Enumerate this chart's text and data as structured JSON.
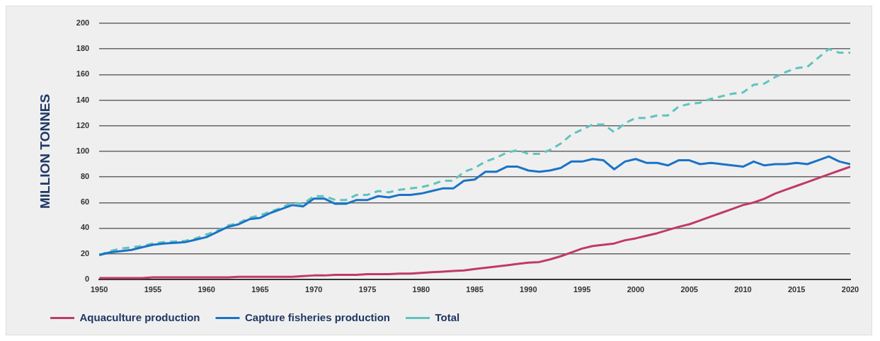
{
  "chart_data": {
    "type": "line",
    "ylabel": "MILLION TONNES",
    "x": [
      1950,
      1951,
      1952,
      1953,
      1954,
      1955,
      1956,
      1957,
      1958,
      1959,
      1960,
      1961,
      1962,
      1963,
      1964,
      1965,
      1966,
      1967,
      1968,
      1969,
      1970,
      1971,
      1972,
      1973,
      1974,
      1975,
      1976,
      1977,
      1978,
      1979,
      1980,
      1981,
      1982,
      1983,
      1984,
      1985,
      1986,
      1987,
      1988,
      1989,
      1990,
      1991,
      1992,
      1993,
      1994,
      1995,
      1996,
      1997,
      1998,
      1999,
      2000,
      2001,
      2002,
      2003,
      2004,
      2005,
      2006,
      2007,
      2008,
      2009,
      2010,
      2011,
      2012,
      2013,
      2014,
      2015,
      2016,
      2017,
      2018,
      2019,
      2020
    ],
    "xlim": [
      1950,
      2020
    ],
    "xticks": [
      1950,
      1955,
      1960,
      1965,
      1970,
      1975,
      1980,
      1985,
      1990,
      1995,
      2000,
      2005,
      2010,
      2015,
      2020
    ],
    "ylim": [
      0,
      200
    ],
    "yticks": [
      0,
      20,
      40,
      60,
      80,
      100,
      120,
      140,
      160,
      180,
      200
    ],
    "grid": "y",
    "legend": "bottom",
    "marker": "none",
    "series": [
      {
        "name": "Aquaculture production",
        "color": "#c0396b",
        "line_style": "solid",
        "values": [
          1,
          1,
          1,
          1,
          1,
          1.5,
          1.5,
          1.5,
          1.5,
          1.5,
          1.5,
          1.5,
          1.5,
          2,
          2,
          2,
          2,
          2,
          2,
          2.5,
          3,
          3,
          3.5,
          3.5,
          3.5,
          4,
          4,
          4,
          4.5,
          4.5,
          5,
          5.5,
          6,
          6.5,
          7,
          8,
          9,
          10,
          11,
          12,
          13,
          13.5,
          15.5,
          18,
          21,
          24,
          26,
          27,
          28,
          30.5,
          32,
          34,
          36,
          38.5,
          41,
          43,
          46,
          49,
          52,
          55,
          58,
          60,
          63,
          67,
          70,
          73,
          76,
          79,
          82,
          85,
          88
        ]
      },
      {
        "name": "Capture fisheries production",
        "color": "#1a73c6",
        "line_style": "solid",
        "values": [
          19,
          21,
          22,
          23,
          25,
          27,
          28,
          28.5,
          29,
          31,
          33,
          37,
          41,
          43,
          47,
          48,
          52,
          55,
          58,
          57,
          63,
          63,
          59,
          59,
          62,
          62,
          65,
          64,
          66,
          66,
          67,
          69,
          71,
          71,
          77,
          78,
          84,
          84,
          88,
          88,
          85,
          84,
          85,
          87,
          92,
          92,
          94,
          93,
          86,
          92,
          94,
          91,
          91,
          89,
          93,
          93,
          90,
          91,
          90,
          89,
          88,
          92,
          89,
          90,
          90,
          91,
          90,
          93,
          96,
          92,
          90
        ]
      },
      {
        "name": "Total",
        "color": "#5fc4bd",
        "line_style": "dashed",
        "values": [
          19,
          22,
          24,
          25,
          26,
          28,
          29,
          29.5,
          30,
          32,
          35,
          38,
          42,
          44,
          48,
          50,
          53,
          56,
          60,
          59,
          65,
          65,
          62,
          62,
          66,
          66,
          69,
          68,
          70,
          71,
          72,
          74,
          77,
          77,
          84,
          87,
          92,
          95,
          99,
          101,
          98,
          98,
          101,
          106,
          113,
          117,
          121,
          121,
          115,
          122,
          126,
          126,
          128,
          128,
          135,
          137,
          138,
          141,
          143,
          145,
          146,
          152,
          153,
          158,
          162,
          165,
          166,
          173,
          180,
          177,
          177
        ]
      }
    ]
  }
}
